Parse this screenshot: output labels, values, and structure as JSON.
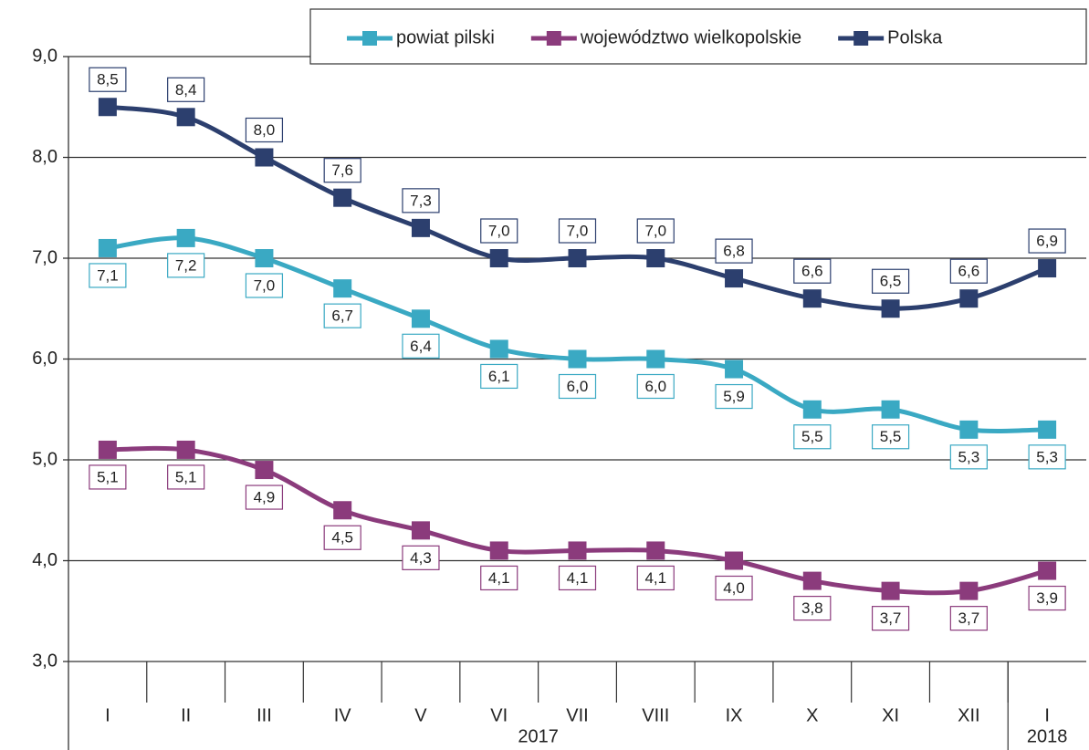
{
  "chart_data": {
    "type": "line",
    "categories": [
      "I",
      "II",
      "III",
      "IV",
      "V",
      "VI",
      "VII",
      "VIII",
      "IX",
      "X",
      "XI",
      "XII",
      "I"
    ],
    "x_groups": [
      {
        "label": "2017",
        "count": 12
      },
      {
        "label": "2018",
        "count": 1
      }
    ],
    "series": [
      {
        "name": "powiat pilski",
        "color": "#3aa9c3",
        "label_side": "below",
        "values": [
          7.1,
          7.2,
          7.0,
          6.7,
          6.4,
          6.1,
          6.0,
          6.0,
          5.9,
          5.5,
          5.5,
          5.3,
          5.3
        ],
        "value_labels": [
          "7,1",
          "7,2",
          "7,0",
          "6,7",
          "6,4",
          "6,1",
          "6,0",
          "6,0",
          "5,9",
          "5,5",
          "5,5",
          "5,3",
          "5,3"
        ]
      },
      {
        "name": "województwo wielkopolskie",
        "color": "#8b3b7c",
        "label_side": "below",
        "values": [
          5.1,
          5.1,
          4.9,
          4.5,
          4.3,
          4.1,
          4.1,
          4.1,
          4.0,
          3.8,
          3.7,
          3.7,
          3.9
        ],
        "value_labels": [
          "5,1",
          "5,1",
          "4,9",
          "4,5",
          "4,3",
          "4,1",
          "4,1",
          "4,1",
          "4,0",
          "3,8",
          "3,7",
          "3,7",
          "3,9"
        ]
      },
      {
        "name": "Polska",
        "color": "#2c3f6e",
        "label_side": "above",
        "values": [
          8.5,
          8.4,
          8.0,
          7.6,
          7.3,
          7.0,
          7.0,
          7.0,
          6.8,
          6.6,
          6.5,
          6.6,
          6.9
        ],
        "value_labels": [
          "8,5",
          "8,4",
          "8,0",
          "7,6",
          "7,3",
          "7,0",
          "7,0",
          "7,0",
          "6,8",
          "6,6",
          "6,5",
          "6,6",
          "6,9"
        ]
      }
    ],
    "ylim": [
      3.0,
      9.0
    ],
    "yticks": [
      {
        "value": 3.0,
        "label": "3,0"
      },
      {
        "value": 4.0,
        "label": "4,0"
      },
      {
        "value": 5.0,
        "label": "5,0"
      },
      {
        "value": 6.0,
        "label": "6,0"
      },
      {
        "value": 7.0,
        "label": "7,0"
      },
      {
        "value": 8.0,
        "label": "8,0"
      },
      {
        "value": 9.0,
        "label": "9,0"
      }
    ],
    "grid": true,
    "legend": "top-right"
  }
}
